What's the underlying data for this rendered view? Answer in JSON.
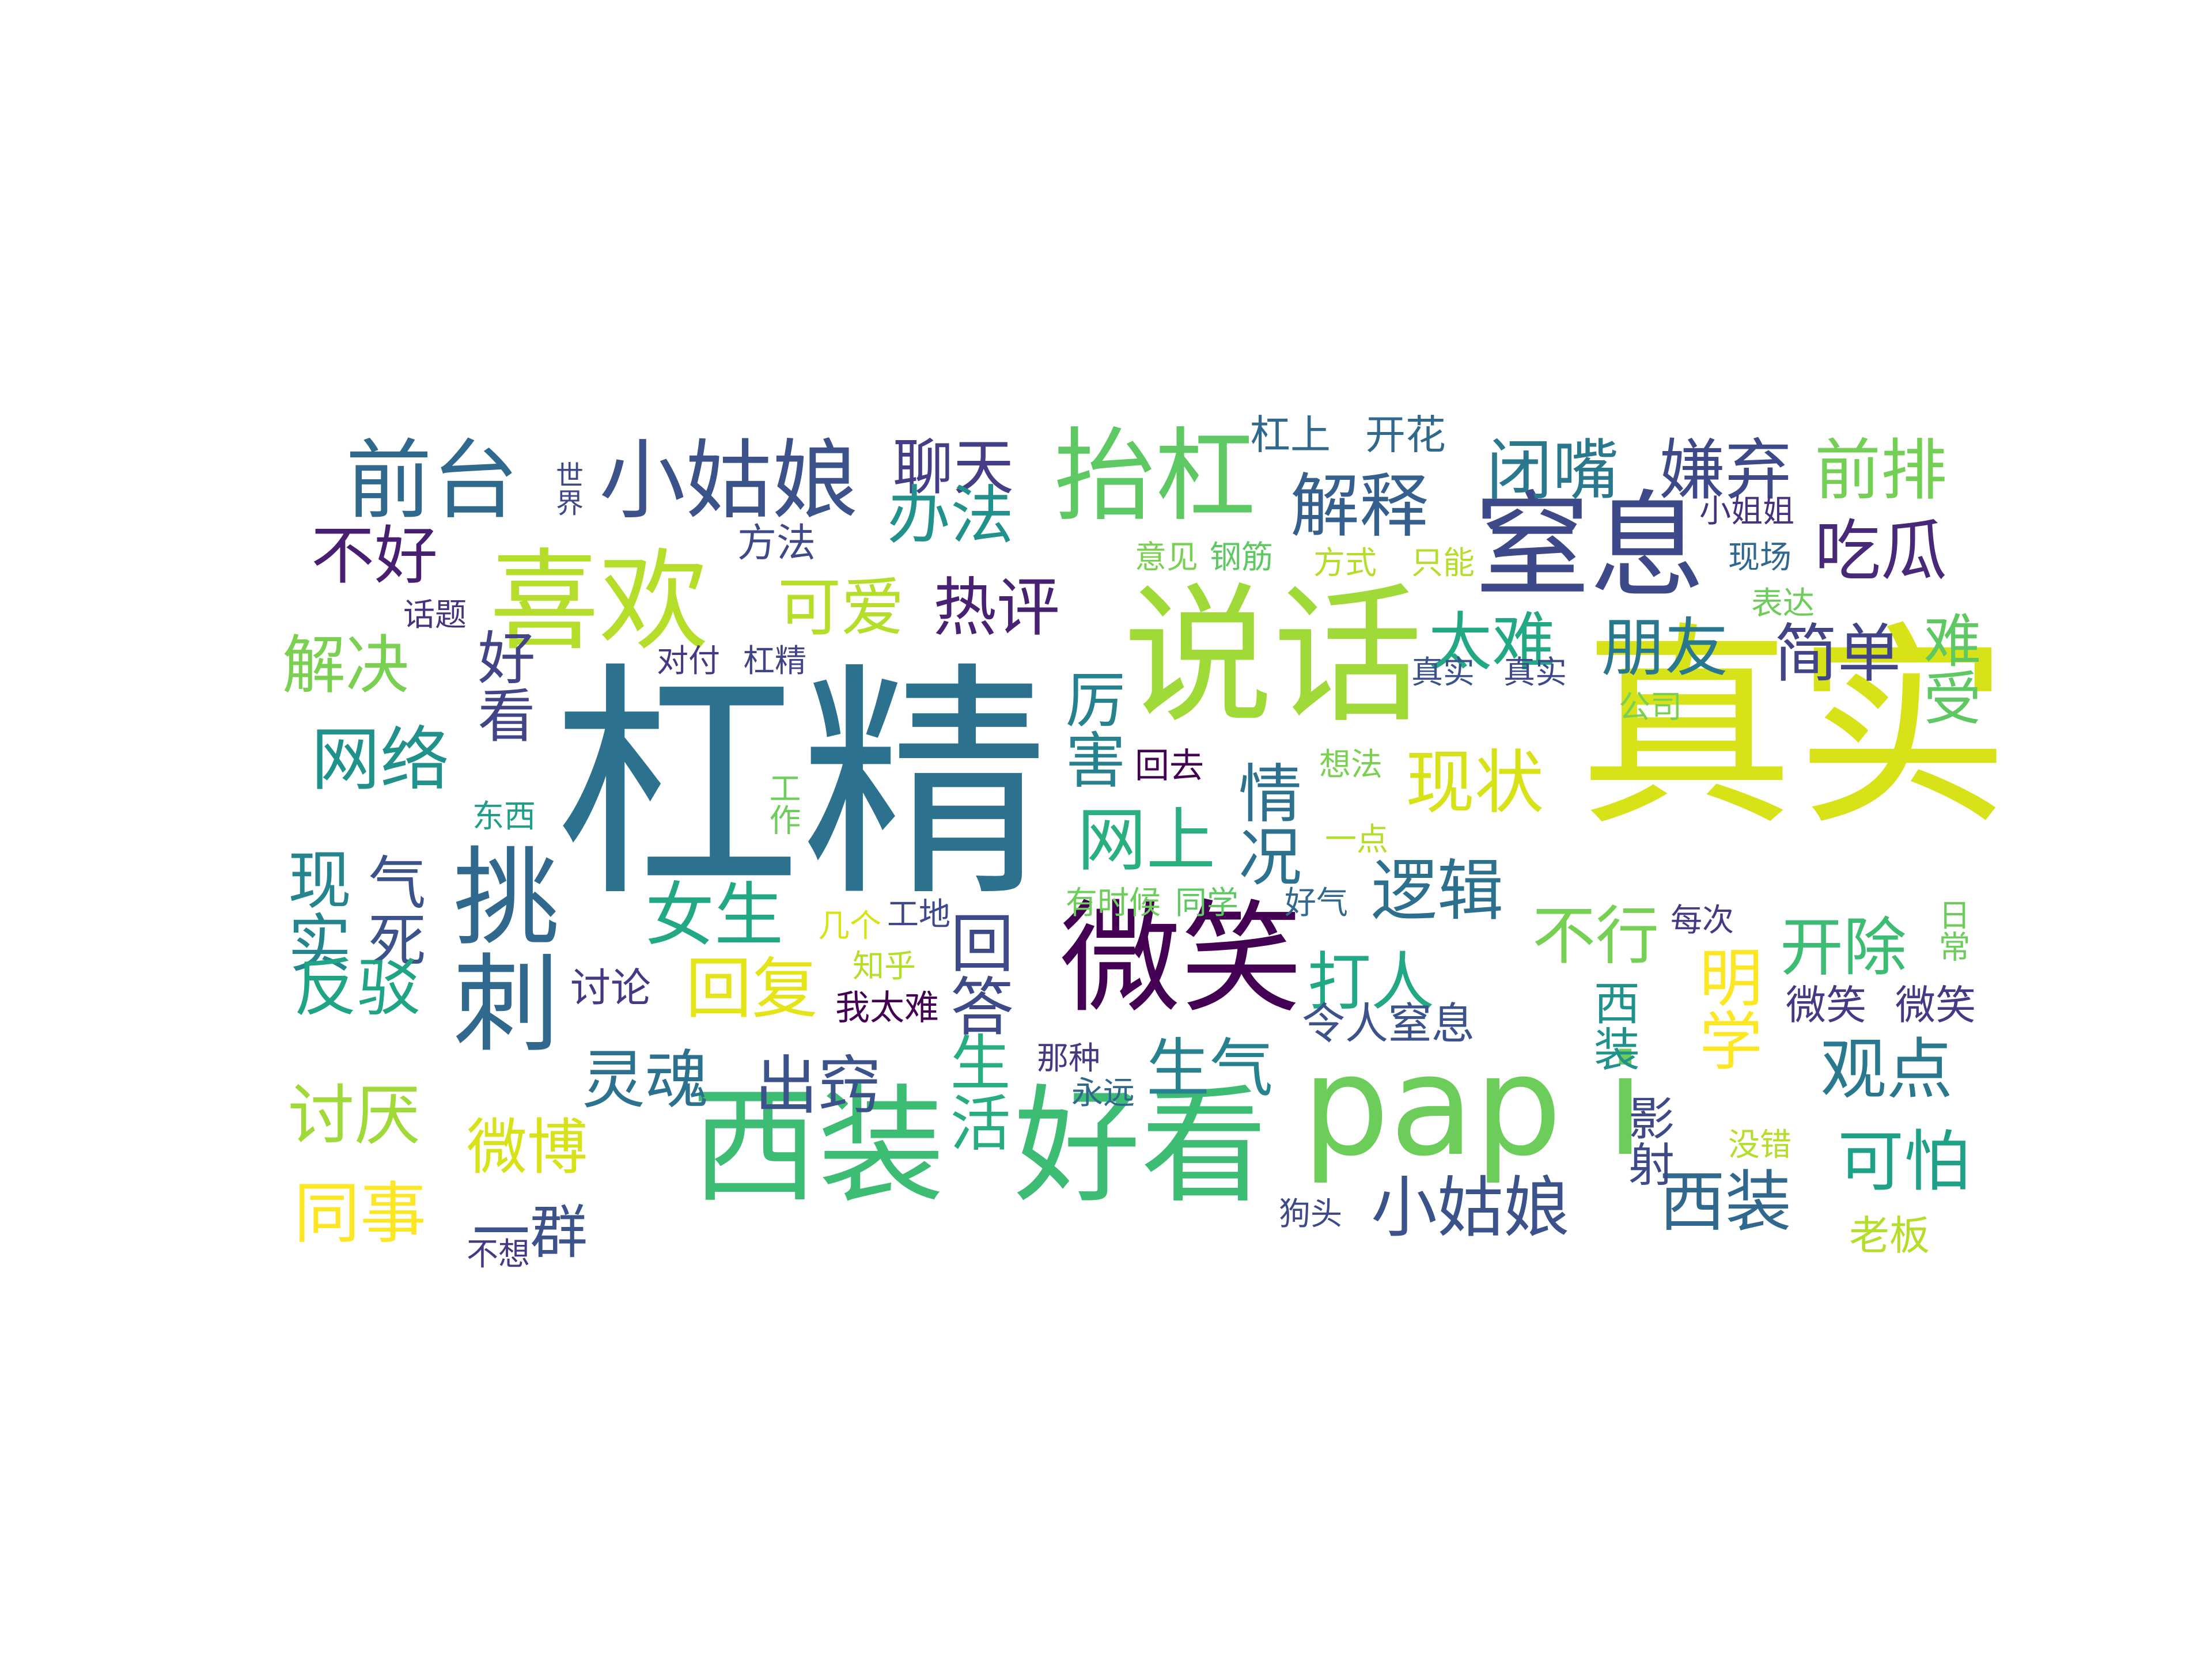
{
  "title": "",
  "chart_data": {
    "type": "word_cloud",
    "words": [
      {
        "text": "杠精",
        "color": "#2c728e",
        "vertical": false
      },
      {
        "text": "真实",
        "color": "#d8e219",
        "vertical": false
      },
      {
        "text": "说话",
        "color": "#a0da39",
        "vertical": false
      },
      {
        "text": "pap i",
        "color": "#6ccd5a",
        "vertical": false
      },
      {
        "text": "西装",
        "color": "#3dbc74",
        "vertical": false
      },
      {
        "text": "好看",
        "color": "#3dbc74",
        "vertical": false
      },
      {
        "text": "微笑",
        "color": "#440154",
        "vertical": false
      },
      {
        "text": "窒息",
        "color": "#3e4989",
        "vertical": false
      },
      {
        "text": "喜欢",
        "color": "#b5de2b",
        "vertical": false
      },
      {
        "text": "挑刺",
        "color": "#31688e",
        "vertical": true
      },
      {
        "text": "抬杠",
        "color": "#5ec962",
        "vertical": false
      },
      {
        "text": "小姑娘",
        "color": "#3b528b",
        "vertical": false
      },
      {
        "text": "前台",
        "color": "#30698e",
        "vertical": false
      },
      {
        "text": "聊天",
        "color": "#433e85",
        "vertical": false
      },
      {
        "text": "办法",
        "color": "#21918c",
        "vertical": false
      },
      {
        "text": "解释",
        "color": "#355f8d",
        "vertical": false
      },
      {
        "text": "闭嘴",
        "color": "#2a788e",
        "vertical": false
      },
      {
        "text": "嫌弃",
        "color": "#3e4989",
        "vertical": false
      },
      {
        "text": "前排",
        "color": "#73d055",
        "vertical": false
      },
      {
        "text": "吃瓜",
        "color": "#482878",
        "vertical": false
      },
      {
        "text": "不好",
        "color": "#481f70",
        "vertical": false
      },
      {
        "text": "可爱",
        "color": "#b5de2b",
        "vertical": false
      },
      {
        "text": "热评",
        "color": "#482173",
        "vertical": false
      },
      {
        "text": "太难",
        "color": "#22a884",
        "vertical": false
      },
      {
        "text": "朋友",
        "color": "#2a788e",
        "vertical": false
      },
      {
        "text": "简单",
        "color": "#414487",
        "vertical": false
      },
      {
        "text": "难受",
        "color": "#5ec962",
        "vertical": true
      },
      {
        "text": "解决",
        "color": "#7ad151",
        "vertical": false
      },
      {
        "text": "好看",
        "color": "#414487",
        "vertical": true
      },
      {
        "text": "网络",
        "color": "#21918c",
        "vertical": false
      },
      {
        "text": "厉害",
        "color": "#26828e",
        "vertical": true
      },
      {
        "text": "现状",
        "color": "#d8e219",
        "vertical": false
      },
      {
        "text": "网上",
        "color": "#2ab07f",
        "vertical": false
      },
      {
        "text": "情况",
        "color": "#2c728e",
        "vertical": true
      },
      {
        "text": "逻辑",
        "color": "#2d708e",
        "vertical": false
      },
      {
        "text": "现实",
        "color": "#25858e",
        "vertical": true
      },
      {
        "text": "气死",
        "color": "#3b528b",
        "vertical": true
      },
      {
        "text": "女生",
        "color": "#22a884",
        "vertical": false
      },
      {
        "text": "不行",
        "color": "#75d054",
        "vertical": false
      },
      {
        "text": "开除",
        "color": "#3dbc74",
        "vertical": false
      },
      {
        "text": "回答",
        "color": "#3e4989",
        "vertical": true
      },
      {
        "text": "打人",
        "color": "#22a884",
        "vertical": false
      },
      {
        "text": "明学",
        "color": "#fde725",
        "vertical": true
      },
      {
        "text": "反驳",
        "color": "#20a486",
        "vertical": false
      },
      {
        "text": "回复",
        "color": "#e5e419",
        "vertical": false
      },
      {
        "text": "令人窒息",
        "color": "#3b528b",
        "vertical": false
      },
      {
        "text": "观点",
        "color": "#2a788e",
        "vertical": false
      },
      {
        "text": "灵魂",
        "color": "#2c728e",
        "vertical": false
      },
      {
        "text": "出窍",
        "color": "#3b528b",
        "vertical": false
      },
      {
        "text": "生活",
        "color": "#27ad81",
        "vertical": true
      },
      {
        "text": "生气",
        "color": "#26828e",
        "vertical": false
      },
      {
        "text": "讨厌",
        "color": "#a0da39",
        "vertical": false
      },
      {
        "text": "微博",
        "color": "#d8e219",
        "vertical": false
      },
      {
        "text": "可怕",
        "color": "#1fa187",
        "vertical": false
      },
      {
        "text": "小姑娘",
        "color": "#3b528b",
        "vertical": false
      },
      {
        "text": "西装",
        "color": "#31688e",
        "vertical": false
      },
      {
        "text": "同事",
        "color": "#fde725",
        "vertical": false
      },
      {
        "text": "一群",
        "color": "#3b528b",
        "vertical": false
      },
      {
        "text": "杠上",
        "color": "#31688e",
        "vertical": false
      },
      {
        "text": "开花",
        "color": "#31688e",
        "vertical": false
      },
      {
        "text": "世界",
        "color": "#3e4989",
        "vertical": true
      },
      {
        "text": "方法",
        "color": "#3e4989",
        "vertical": false
      },
      {
        "text": "小姐姐",
        "color": "#46327e",
        "vertical": false
      },
      {
        "text": "意见",
        "color": "#7ad151",
        "vertical": false
      },
      {
        "text": "钢筋",
        "color": "#5ec962",
        "vertical": false
      },
      {
        "text": "方式",
        "color": "#b5de2b",
        "vertical": false
      },
      {
        "text": "只能",
        "color": "#b5de2b",
        "vertical": false
      },
      {
        "text": "现场",
        "color": "#31688e",
        "vertical": false
      },
      {
        "text": "话题",
        "color": "#46327e",
        "vertical": false
      },
      {
        "text": "表达",
        "color": "#6ccd5a",
        "vertical": false
      },
      {
        "text": "对付",
        "color": "#443983",
        "vertical": false
      },
      {
        "text": "杠精",
        "color": "#414487",
        "vertical": false
      },
      {
        "text": "真实",
        "color": "#3b528b",
        "vertical": false
      },
      {
        "text": "真实",
        "color": "#3e4989",
        "vertical": false
      },
      {
        "text": "公司",
        "color": "#7ad151",
        "vertical": false
      },
      {
        "text": "回去",
        "color": "#440154",
        "vertical": false
      },
      {
        "text": "想法",
        "color": "#7ad151",
        "vertical": false
      },
      {
        "text": "东西",
        "color": "#1f9e89",
        "vertical": false
      },
      {
        "text": "工作",
        "color": "#6ccd5a",
        "vertical": true
      },
      {
        "text": "一点",
        "color": "#b5de2b",
        "vertical": false
      },
      {
        "text": "有时候",
        "color": "#6ccd5a",
        "vertical": false
      },
      {
        "text": "同学",
        "color": "#5ec962",
        "vertical": false
      },
      {
        "text": "好气",
        "color": "#31688e",
        "vertical": false
      },
      {
        "text": "几个",
        "color": "#d8e219",
        "vertical": false
      },
      {
        "text": "工地",
        "color": "#3e4989",
        "vertical": false
      },
      {
        "text": "每次",
        "color": "#443983",
        "vertical": false
      },
      {
        "text": "日常",
        "color": "#6ccd5a",
        "vertical": true
      },
      {
        "text": "讨论",
        "color": "#443983",
        "vertical": false
      },
      {
        "text": "知乎",
        "color": "#b5de2b",
        "vertical": false
      },
      {
        "text": "我太难",
        "color": "#440154",
        "vertical": false
      },
      {
        "text": "西装",
        "color": "#21918c",
        "vertical": true
      },
      {
        "text": "微笑",
        "color": "#443983",
        "vertical": false
      },
      {
        "text": "微笑",
        "color": "#443983",
        "vertical": false
      },
      {
        "text": "那种",
        "color": "#443983",
        "vertical": false
      },
      {
        "text": "永远",
        "color": "#31688e",
        "vertical": false
      },
      {
        "text": "影射",
        "color": "#3e4989",
        "vertical": true
      },
      {
        "text": "没错",
        "color": "#b5de2b",
        "vertical": false
      },
      {
        "text": "狗头",
        "color": "#3e4989",
        "vertical": false
      },
      {
        "text": "老板",
        "color": "#b5de2b",
        "vertical": false
      },
      {
        "text": "不想",
        "color": "#443983",
        "vertical": false
      }
    ]
  }
}
